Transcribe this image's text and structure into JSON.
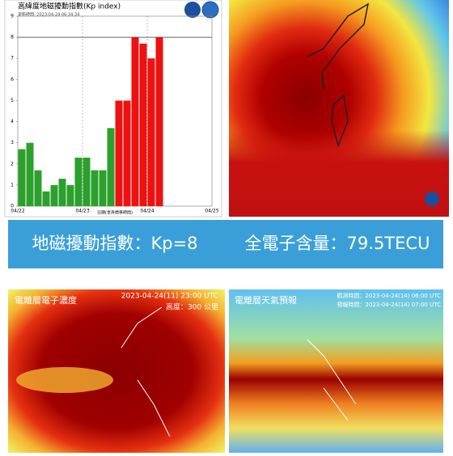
{
  "chart_data": {
    "type": "bar",
    "title": "高緯度地磁擾動指數(Kp index)",
    "subtitle": "更新時間: 2023-04-24 06:34:34",
    "x_label": "日期(世界標準時間)",
    "x_labels": [
      "04/22",
      "04/23",
      "04/24",
      "04/25"
    ],
    "values": [
      2.7,
      3.0,
      1.7,
      0.7,
      1.0,
      1.3,
      1.0,
      2.3,
      2.3,
      1.7,
      1.7,
      3.7,
      5.0,
      5.0,
      8.0,
      7.7,
      7.0,
      8.0,
      null,
      null,
      null,
      null,
      null,
      null
    ],
    "colors": [
      "#2ca02c",
      "#2ca02c",
      "#2ca02c",
      "#2ca02c",
      "#2ca02c",
      "#2ca02c",
      "#2ca02c",
      "#2ca02c",
      "#2ca02c",
      "#2ca02c",
      "#2ca02c",
      "#2ca02c",
      "#ee1111",
      "#ee1111",
      "#ee1111",
      "#ee1111",
      "#ee1111",
      "#ee1111",
      null,
      null,
      null,
      null,
      null,
      null
    ],
    "ylim": [
      0,
      9
    ],
    "yticks": [
      0,
      1,
      2,
      3,
      4,
      5,
      6,
      7,
      8,
      9
    ],
    "reference_line": 8
  },
  "banner": {
    "kp": "地磁擾動指數：Kp=8",
    "tec": "全電子含量：79.5TECU"
  },
  "panels": [
    {
      "title": "電離層電子濃度",
      "time": "2023-04-24(11) 23:00 UTC",
      "height": "高度：300 公里"
    },
    {
      "title": "電離層天氣預報",
      "observed": "觀測時間：2023-04-24(14) 06:00 UTC",
      "forecast": "預報時間：2023-04-24(14) 07:00 UTC"
    }
  ]
}
